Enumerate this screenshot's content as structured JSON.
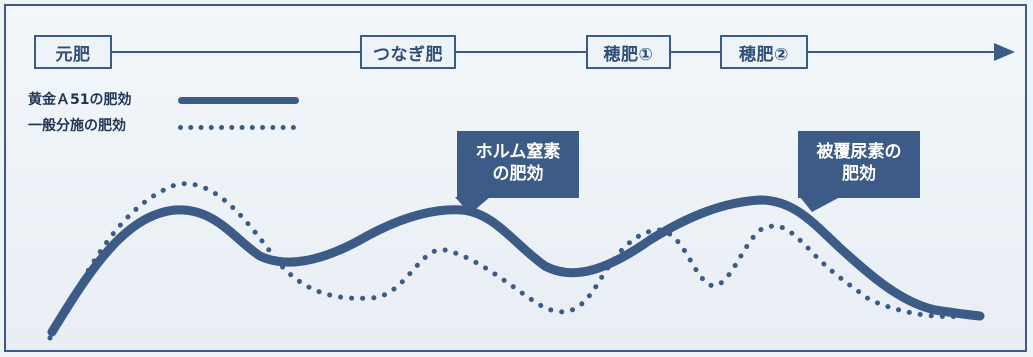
{
  "timeline": {
    "stages": [
      {
        "label": "元肥"
      },
      {
        "label": "つなぎ肥"
      },
      {
        "label": "穂肥①"
      },
      {
        "label": "穂肥②"
      }
    ]
  },
  "legend": {
    "items": [
      {
        "label": "黄金Ａ51の肥効",
        "style": "solid"
      },
      {
        "label": "一般分施の肥効",
        "style": "dotted"
      }
    ]
  },
  "callouts": [
    {
      "text": "ホルム窒素\nの肥効"
    },
    {
      "text": "被覆尿素の\n肥効"
    }
  ],
  "colors": {
    "primary": "#3c5b86",
    "background": "#eef3f7"
  }
}
